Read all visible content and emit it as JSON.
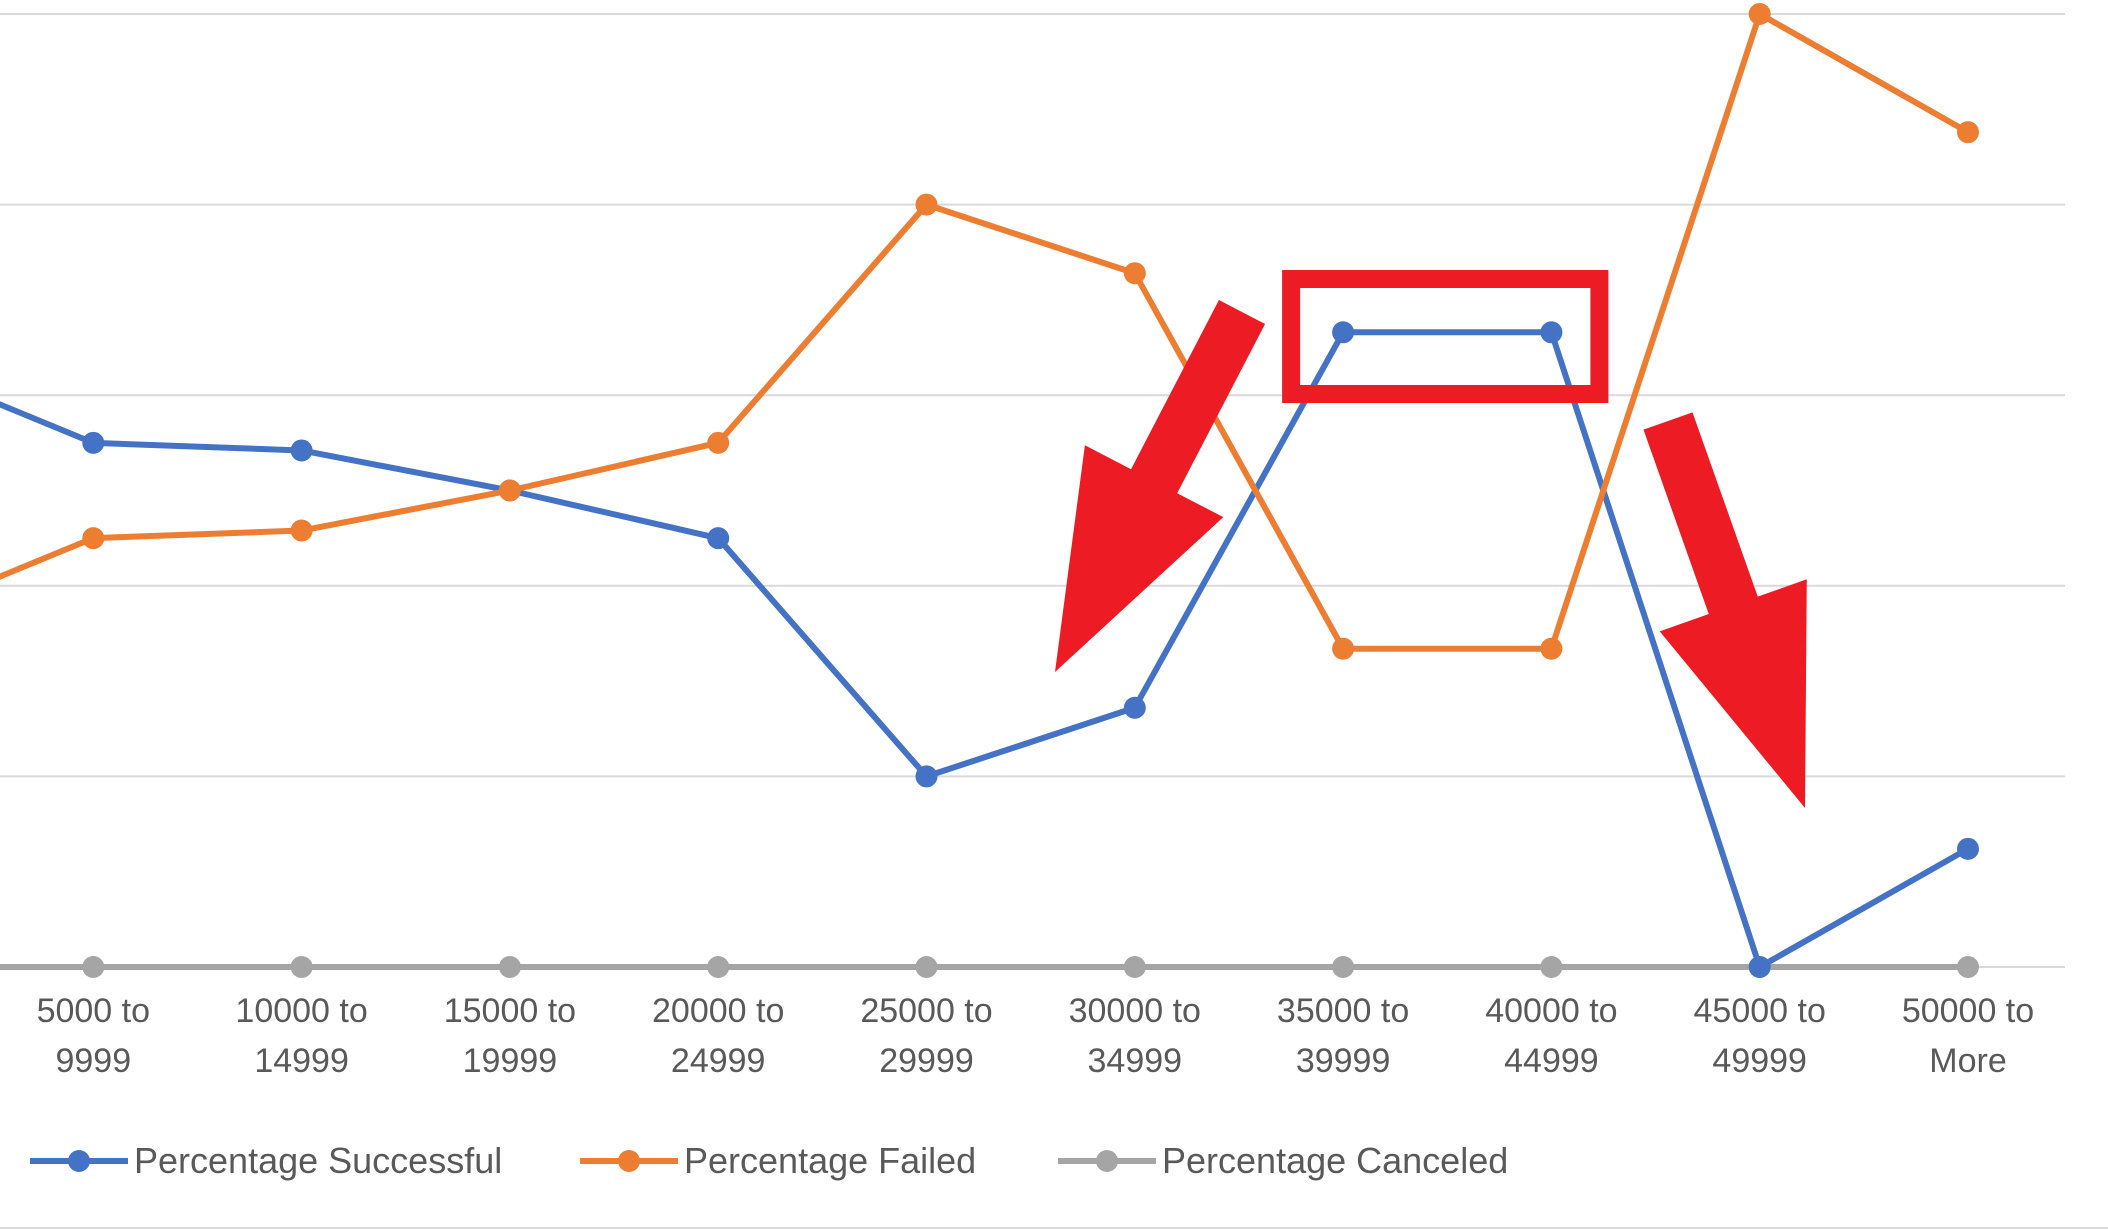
{
  "chart_data": {
    "type": "line",
    "title": "",
    "xlabel": "",
    "ylabel": "",
    "categories": [
      [
        "",
        ""
      ],
      [
        "5000 to",
        "9999"
      ],
      [
        "10000 to",
        "14999"
      ],
      [
        "15000 to",
        "19999"
      ],
      [
        "20000 to",
        "24999"
      ],
      [
        "25000 to",
        "29999"
      ],
      [
        "30000 to",
        "34999"
      ],
      [
        "35000 to",
        "39999"
      ],
      [
        "40000 to",
        "44999"
      ],
      [
        "45000 to",
        "49999"
      ],
      [
        "50000 to",
        "More"
      ]
    ],
    "ylim": [
      0,
      5
    ],
    "y_gridlines": [
      0,
      1,
      2,
      3,
      4,
      5
    ],
    "grid": true,
    "legend_position": "bottom-left",
    "series": [
      {
        "name": "Percentage Successful",
        "color": "#4472C4",
        "values": [
          3.2,
          2.75,
          2.71,
          2.5,
          2.25,
          1.0,
          1.36,
          3.33,
          3.33,
          0.0,
          0.62
        ]
      },
      {
        "name": "Percentage Failed",
        "color": "#ED7D31",
        "values": [
          1.8,
          2.25,
          2.29,
          2.5,
          2.75,
          4.0,
          3.64,
          1.67,
          1.67,
          5.0,
          4.38
        ]
      },
      {
        "name": "Percentage Canceled",
        "color": "#A5A5A5",
        "values": [
          0,
          0,
          0,
          0,
          0,
          0,
          0,
          0,
          0,
          0,
          0
        ]
      }
    ],
    "annotations": [
      {
        "type": "highlight-box",
        "color": "#ED1C24",
        "target_categories": [
          7,
          8
        ],
        "target_series": "Percentage Successful"
      },
      {
        "type": "down-arrow",
        "color": "#ED1C24",
        "near_category": 6
      },
      {
        "type": "down-arrow",
        "color": "#ED1C24",
        "near_category": 9
      }
    ]
  }
}
